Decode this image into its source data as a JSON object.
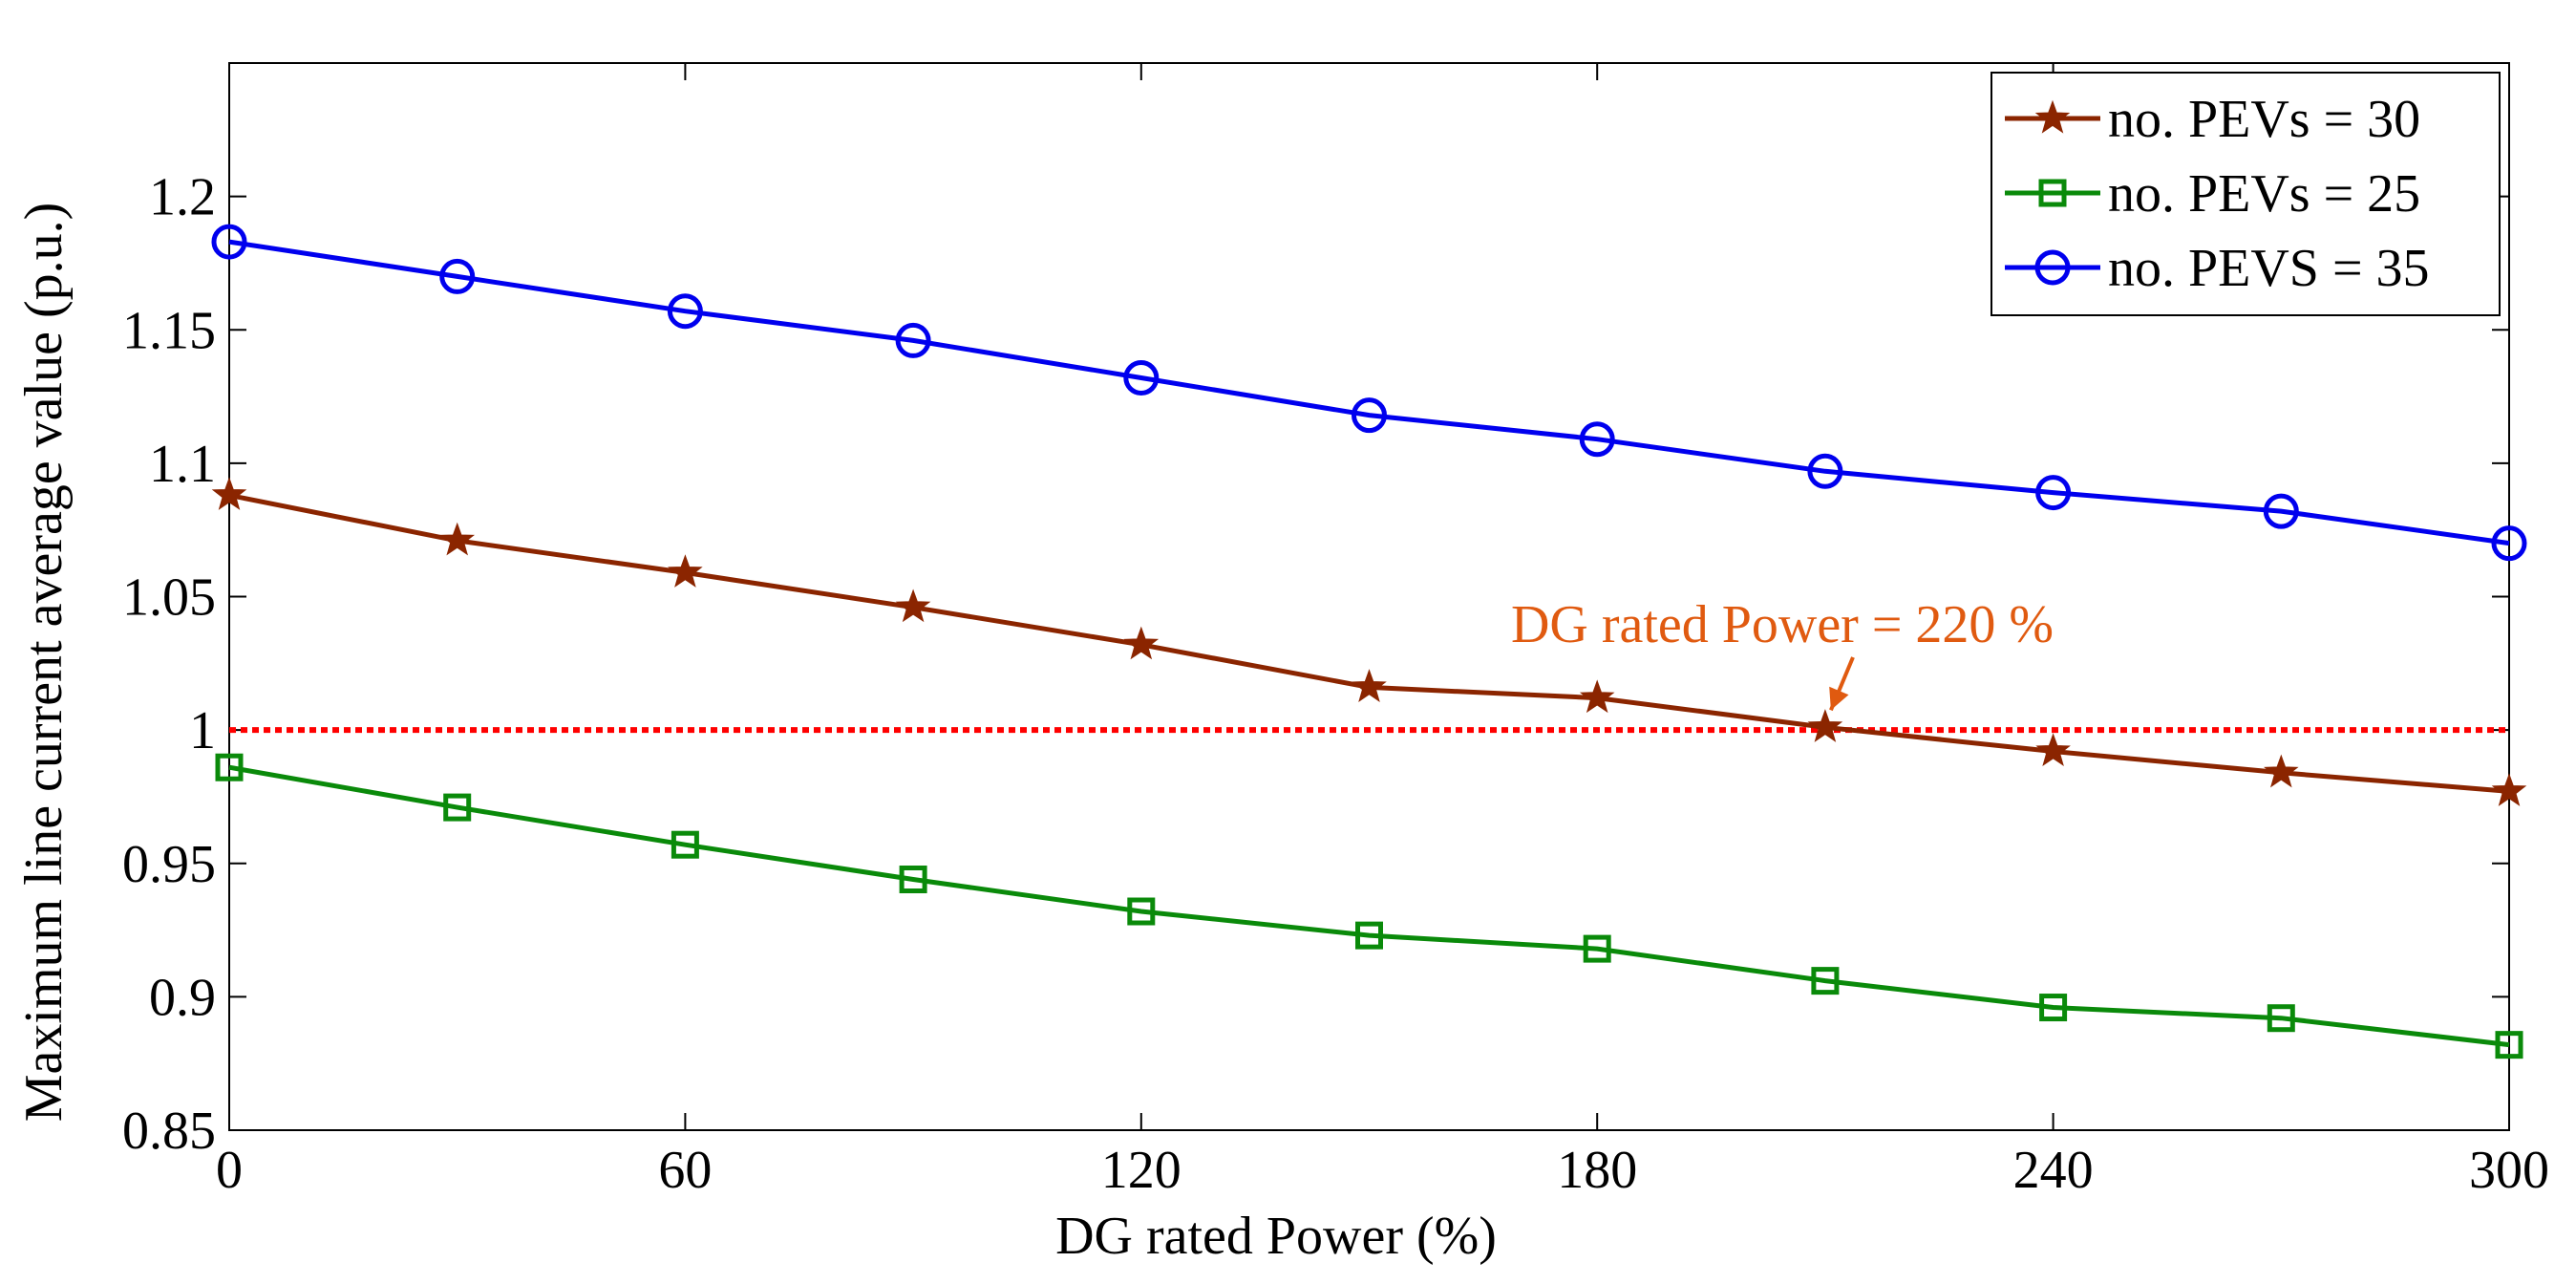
{
  "chart_data": {
    "type": "line",
    "title": "",
    "xlabel": "DG rated Power (%)",
    "ylabel": "Maximum line current average value (p.u.)",
    "xlim": [
      0,
      300
    ],
    "ylim": [
      0.85,
      1.25
    ],
    "xticks": [
      0,
      60,
      120,
      180,
      240,
      300
    ],
    "yticks": [
      0.85,
      0.9,
      0.95,
      1,
      1.05,
      1.1,
      1.15,
      1.2
    ],
    "ytick_labels": [
      "0.85",
      "0.9",
      "0.95",
      "1",
      "1.05",
      "1.1",
      "1.15",
      "1.2"
    ],
    "x": [
      0,
      30,
      60,
      90,
      120,
      150,
      180,
      210,
      240,
      270,
      300
    ],
    "series": [
      {
        "name": "no. PEVs = 30",
        "marker": "star",
        "color": "#8B2500",
        "values": [
          1.088,
          1.071,
          1.059,
          1.046,
          1.032,
          1.016,
          1.012,
          1.001,
          0.992,
          0.984,
          0.977
        ]
      },
      {
        "name": "no. PEVs = 25",
        "marker": "square",
        "color": "#0A8A0A",
        "values": [
          0.986,
          0.971,
          0.957,
          0.944,
          0.932,
          0.923,
          0.918,
          0.906,
          0.896,
          0.892,
          0.882
        ]
      },
      {
        "name": "no. PEVS = 35",
        "marker": "circle",
        "color": "#0000EE",
        "values": [
          1.183,
          1.17,
          1.157,
          1.146,
          1.132,
          1.118,
          1.109,
          1.097,
          1.089,
          1.082,
          1.07
        ]
      }
    ],
    "reference_line": {
      "y": 1.0,
      "color": "#FF0000",
      "style": "dotted"
    },
    "annotation": {
      "text": "DG rated Power = 220 %",
      "point_x": 210,
      "point_y": 1.001,
      "color": "#E05A10"
    },
    "legend_position": "top-right",
    "grid": false
  }
}
